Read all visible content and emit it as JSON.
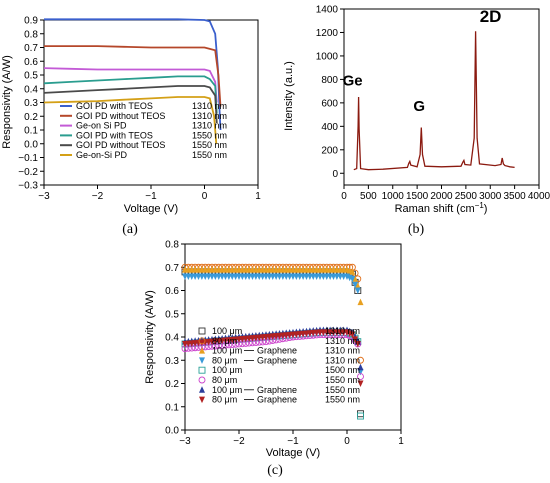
{
  "chart_data": [
    {
      "panel": "(a)",
      "type": "line",
      "xlabel": "Voltage (V)",
      "ylabel": "Responsivity (A/W)",
      "xlim": [
        -3,
        1
      ],
      "ylim": [
        -0.3,
        0.9
      ],
      "xticks": [
        -3,
        -2,
        -1,
        0,
        1
      ],
      "yticks": [
        -0.3,
        -0.2,
        -0.1,
        0.0,
        0.1,
        0.2,
        0.3,
        0.4,
        0.5,
        0.6,
        0.7,
        0.8,
        0.9
      ],
      "ytick_labels": [
        "-0.3",
        "-0.2",
        "-0.1",
        "0.0",
        "0.1",
        "0.2",
        "0.3",
        "0.4",
        "0.5",
        "0.6",
        "0.7",
        "0.8",
        "0.9"
      ],
      "legend_position": "bottom-center",
      "series": [
        {
          "name": "GOI PD with TEOS",
          "wavelength": "1310 nm",
          "color": "#3a5fcd",
          "x": [
            -3,
            -2.5,
            -2,
            -1.5,
            -1,
            -0.5,
            0,
            0.1,
            0.2,
            0.25,
            0.28,
            0.3
          ],
          "y": [
            0.905,
            0.905,
            0.905,
            0.905,
            0.905,
            0.905,
            0.9,
            0.89,
            0.8,
            0.55,
            0.25,
            0.1
          ]
        },
        {
          "name": "GOI PD without TEOS",
          "wavelength": "1310 nm",
          "color": "#b5472a",
          "x": [
            -3,
            -2.5,
            -2,
            -1.5,
            -1,
            -0.5,
            0,
            0.1,
            0.2,
            0.26,
            0.3
          ],
          "y": [
            0.71,
            0.71,
            0.71,
            0.705,
            0.7,
            0.7,
            0.7,
            0.69,
            0.68,
            0.5,
            0.27
          ]
        },
        {
          "name": "Ge-on Si PD",
          "wavelength": "1310 nm",
          "color": "#c35ad6",
          "x": [
            -3,
            -2.5,
            -2,
            -1.5,
            -1,
            -0.5,
            0,
            0.1,
            0.2,
            0.23
          ],
          "y": [
            0.55,
            0.545,
            0.54,
            0.54,
            0.54,
            0.54,
            0.54,
            0.53,
            0.45,
            0.3
          ]
        },
        {
          "name": "GOI PD with TEOS",
          "wavelength": "1550 nm",
          "color": "#2a9d8f",
          "x": [
            -3,
            -2.5,
            -2,
            -1.5,
            -1,
            -0.5,
            0,
            0.1,
            0.2,
            0.23
          ],
          "y": [
            0.44,
            0.45,
            0.46,
            0.47,
            0.48,
            0.49,
            0.49,
            0.47,
            0.42,
            0.22
          ]
        },
        {
          "name": "GOI PD without TEOS",
          "wavelength": "1550 nm",
          "color": "#4a4a4a",
          "x": [
            -3,
            -2.5,
            -2,
            -1.5,
            -1,
            -0.5,
            0,
            0.1,
            0.2,
            0.23
          ],
          "y": [
            0.37,
            0.38,
            0.39,
            0.4,
            0.41,
            0.42,
            0.42,
            0.41,
            0.35,
            0.15
          ]
        },
        {
          "name": "Ge-on-Si PD",
          "wavelength": "1550 nm",
          "color": "#d4a017",
          "x": [
            -3,
            -2.5,
            -2,
            -1.5,
            -1,
            -0.5,
            0,
            0.1,
            0.18,
            0.22
          ],
          "y": [
            0.3,
            0.305,
            0.31,
            0.32,
            0.33,
            0.34,
            0.34,
            0.33,
            0.2,
            0.0
          ]
        }
      ]
    },
    {
      "panel": "(b)",
      "type": "line",
      "xlabel": "Raman shift (cm",
      "xlabel_sup": "−1",
      "xlabel_end": ")",
      "ylabel": "Intensity (a.u.)",
      "xlim": [
        0,
        4000
      ],
      "ylim": [
        -100,
        1400
      ],
      "xticks": [
        0,
        500,
        1000,
        1500,
        2000,
        2500,
        3000,
        3500,
        4000
      ],
      "yticks": [
        0,
        200,
        400,
        600,
        800,
        1000,
        1200,
        1400
      ],
      "color": "#8b1a10",
      "annotations": [
        {
          "text": "Ge",
          "x": 300,
          "y": 680
        },
        {
          "text": "G",
          "x": 1585,
          "y": 430
        },
        {
          "text": "2D",
          "x": 2720,
          "y": 1220
        }
      ],
      "x": [
        200,
        260,
        290,
        300,
        310,
        340,
        500,
        800,
        1300,
        1330,
        1350,
        1370,
        1500,
        1560,
        1585,
        1610,
        1660,
        2000,
        2400,
        2440,
        2460,
        2480,
        2600,
        2670,
        2700,
        2730,
        2780,
        3100,
        3220,
        3245,
        3270,
        3300,
        3400,
        3500
      ],
      "y": [
        30,
        40,
        400,
        650,
        380,
        40,
        30,
        35,
        50,
        85,
        100,
        70,
        55,
        160,
        390,
        160,
        60,
        55,
        60,
        95,
        110,
        75,
        70,
        300,
        1210,
        300,
        80,
        65,
        75,
        130,
        80,
        65,
        55,
        50
      ]
    },
    {
      "panel": "(c)",
      "type": "scatter",
      "xlabel": "Voltage (V)",
      "ylabel": "Responsivity (A/W)",
      "xlim": [
        -3,
        1
      ],
      "ylim": [
        0,
        0.8
      ],
      "xticks": [
        -3,
        -2,
        -1,
        0,
        1
      ],
      "yticks": [
        0.0,
        0.1,
        0.2,
        0.3,
        0.4,
        0.5,
        0.6,
        0.7,
        0.8
      ],
      "ytick_labels": [
        "0.0",
        "0.1",
        "0.2",
        "0.3",
        "0.4",
        "0.5",
        "0.6",
        "0.7",
        "0.8"
      ],
      "legend_position": "bottom-center",
      "series": [
        {
          "name": "100 μm",
          "graphene": "",
          "wavelength": "1310 nm",
          "marker": "square-open",
          "color": "#333333",
          "x": [
            -3,
            -2.5,
            -2,
            -1.5,
            -1,
            -0.5,
            0,
            0.1,
            0.2,
            0.25
          ],
          "y": [
            0.68,
            0.68,
            0.68,
            0.68,
            0.68,
            0.68,
            0.68,
            0.67,
            0.6,
            0.07
          ]
        },
        {
          "name": "80 μm",
          "graphene": "",
          "wavelength": "1310 nm",
          "marker": "circle-open",
          "color": "#e0701c",
          "x": [
            -3,
            -2.5,
            -2,
            -1.5,
            -1,
            -0.5,
            0,
            0.1,
            0.2,
            0.25
          ],
          "y": [
            0.7,
            0.7,
            0.7,
            0.7,
            0.7,
            0.7,
            0.7,
            0.7,
            0.65,
            0.3
          ]
        },
        {
          "name": "100 μm",
          "graphene": "Graphene",
          "wavelength": "1310 nm",
          "marker": "triangle-up-filled",
          "color": "#e8a020",
          "x": [
            -3,
            -2.5,
            -2,
            -1.5,
            -1,
            -0.5,
            0,
            0.1,
            0.2,
            0.25
          ],
          "y": [
            0.69,
            0.69,
            0.69,
            0.69,
            0.69,
            0.69,
            0.69,
            0.68,
            0.62,
            0.55
          ]
        },
        {
          "name": "80 μm",
          "graphene": "Graphene",
          "wavelength": "1310 nm",
          "marker": "triangle-down-filled",
          "color": "#3a9ad9",
          "x": [
            -3,
            -2.5,
            -2,
            -1.5,
            -1,
            -0.5,
            0,
            0.1,
            0.2,
            0.25
          ],
          "y": [
            0.66,
            0.66,
            0.66,
            0.66,
            0.66,
            0.66,
            0.66,
            0.65,
            0.6,
            0.25
          ]
        },
        {
          "name": "100 μm",
          "graphene": "",
          "wavelength": "1500 nm",
          "marker": "square-open",
          "color": "#2aa198",
          "x": [
            -3,
            -2.5,
            -2,
            -1.5,
            -1,
            -0.5,
            0,
            0.1,
            0.2,
            0.25
          ],
          "y": [
            0.37,
            0.38,
            0.39,
            0.4,
            0.41,
            0.42,
            0.42,
            0.41,
            0.38,
            0.06
          ]
        },
        {
          "name": "80 μm",
          "graphene": "",
          "wavelength": "1550 nm",
          "marker": "circle-open",
          "color": "#cc44cc",
          "x": [
            -3,
            -2.5,
            -2,
            -1.5,
            -1,
            -0.5,
            0,
            0.1,
            0.2,
            0.25
          ],
          "y": [
            0.35,
            0.36,
            0.37,
            0.38,
            0.4,
            0.41,
            0.41,
            0.4,
            0.37,
            0.23
          ]
        },
        {
          "name": "100 μm",
          "graphene": "Graphene",
          "wavelength": "1550 nm",
          "marker": "triangle-up-filled",
          "color": "#2c3e9c",
          "x": [
            -3,
            -2.5,
            -2,
            -1.5,
            -1,
            -0.5,
            0,
            0.1,
            0.2,
            0.25
          ],
          "y": [
            0.38,
            0.39,
            0.4,
            0.41,
            0.42,
            0.43,
            0.43,
            0.42,
            0.38,
            0.27
          ]
        },
        {
          "name": "80 μm",
          "graphene": "Graphene",
          "wavelength": "1550 nm",
          "marker": "triangle-down-filled",
          "color": "#b22222",
          "x": [
            -3,
            -2.5,
            -2,
            -1.5,
            -1,
            -0.5,
            0,
            0.1,
            0.2,
            0.25
          ],
          "y": [
            0.37,
            0.38,
            0.39,
            0.4,
            0.41,
            0.42,
            0.42,
            0.41,
            0.37,
            0.2
          ]
        }
      ]
    }
  ]
}
